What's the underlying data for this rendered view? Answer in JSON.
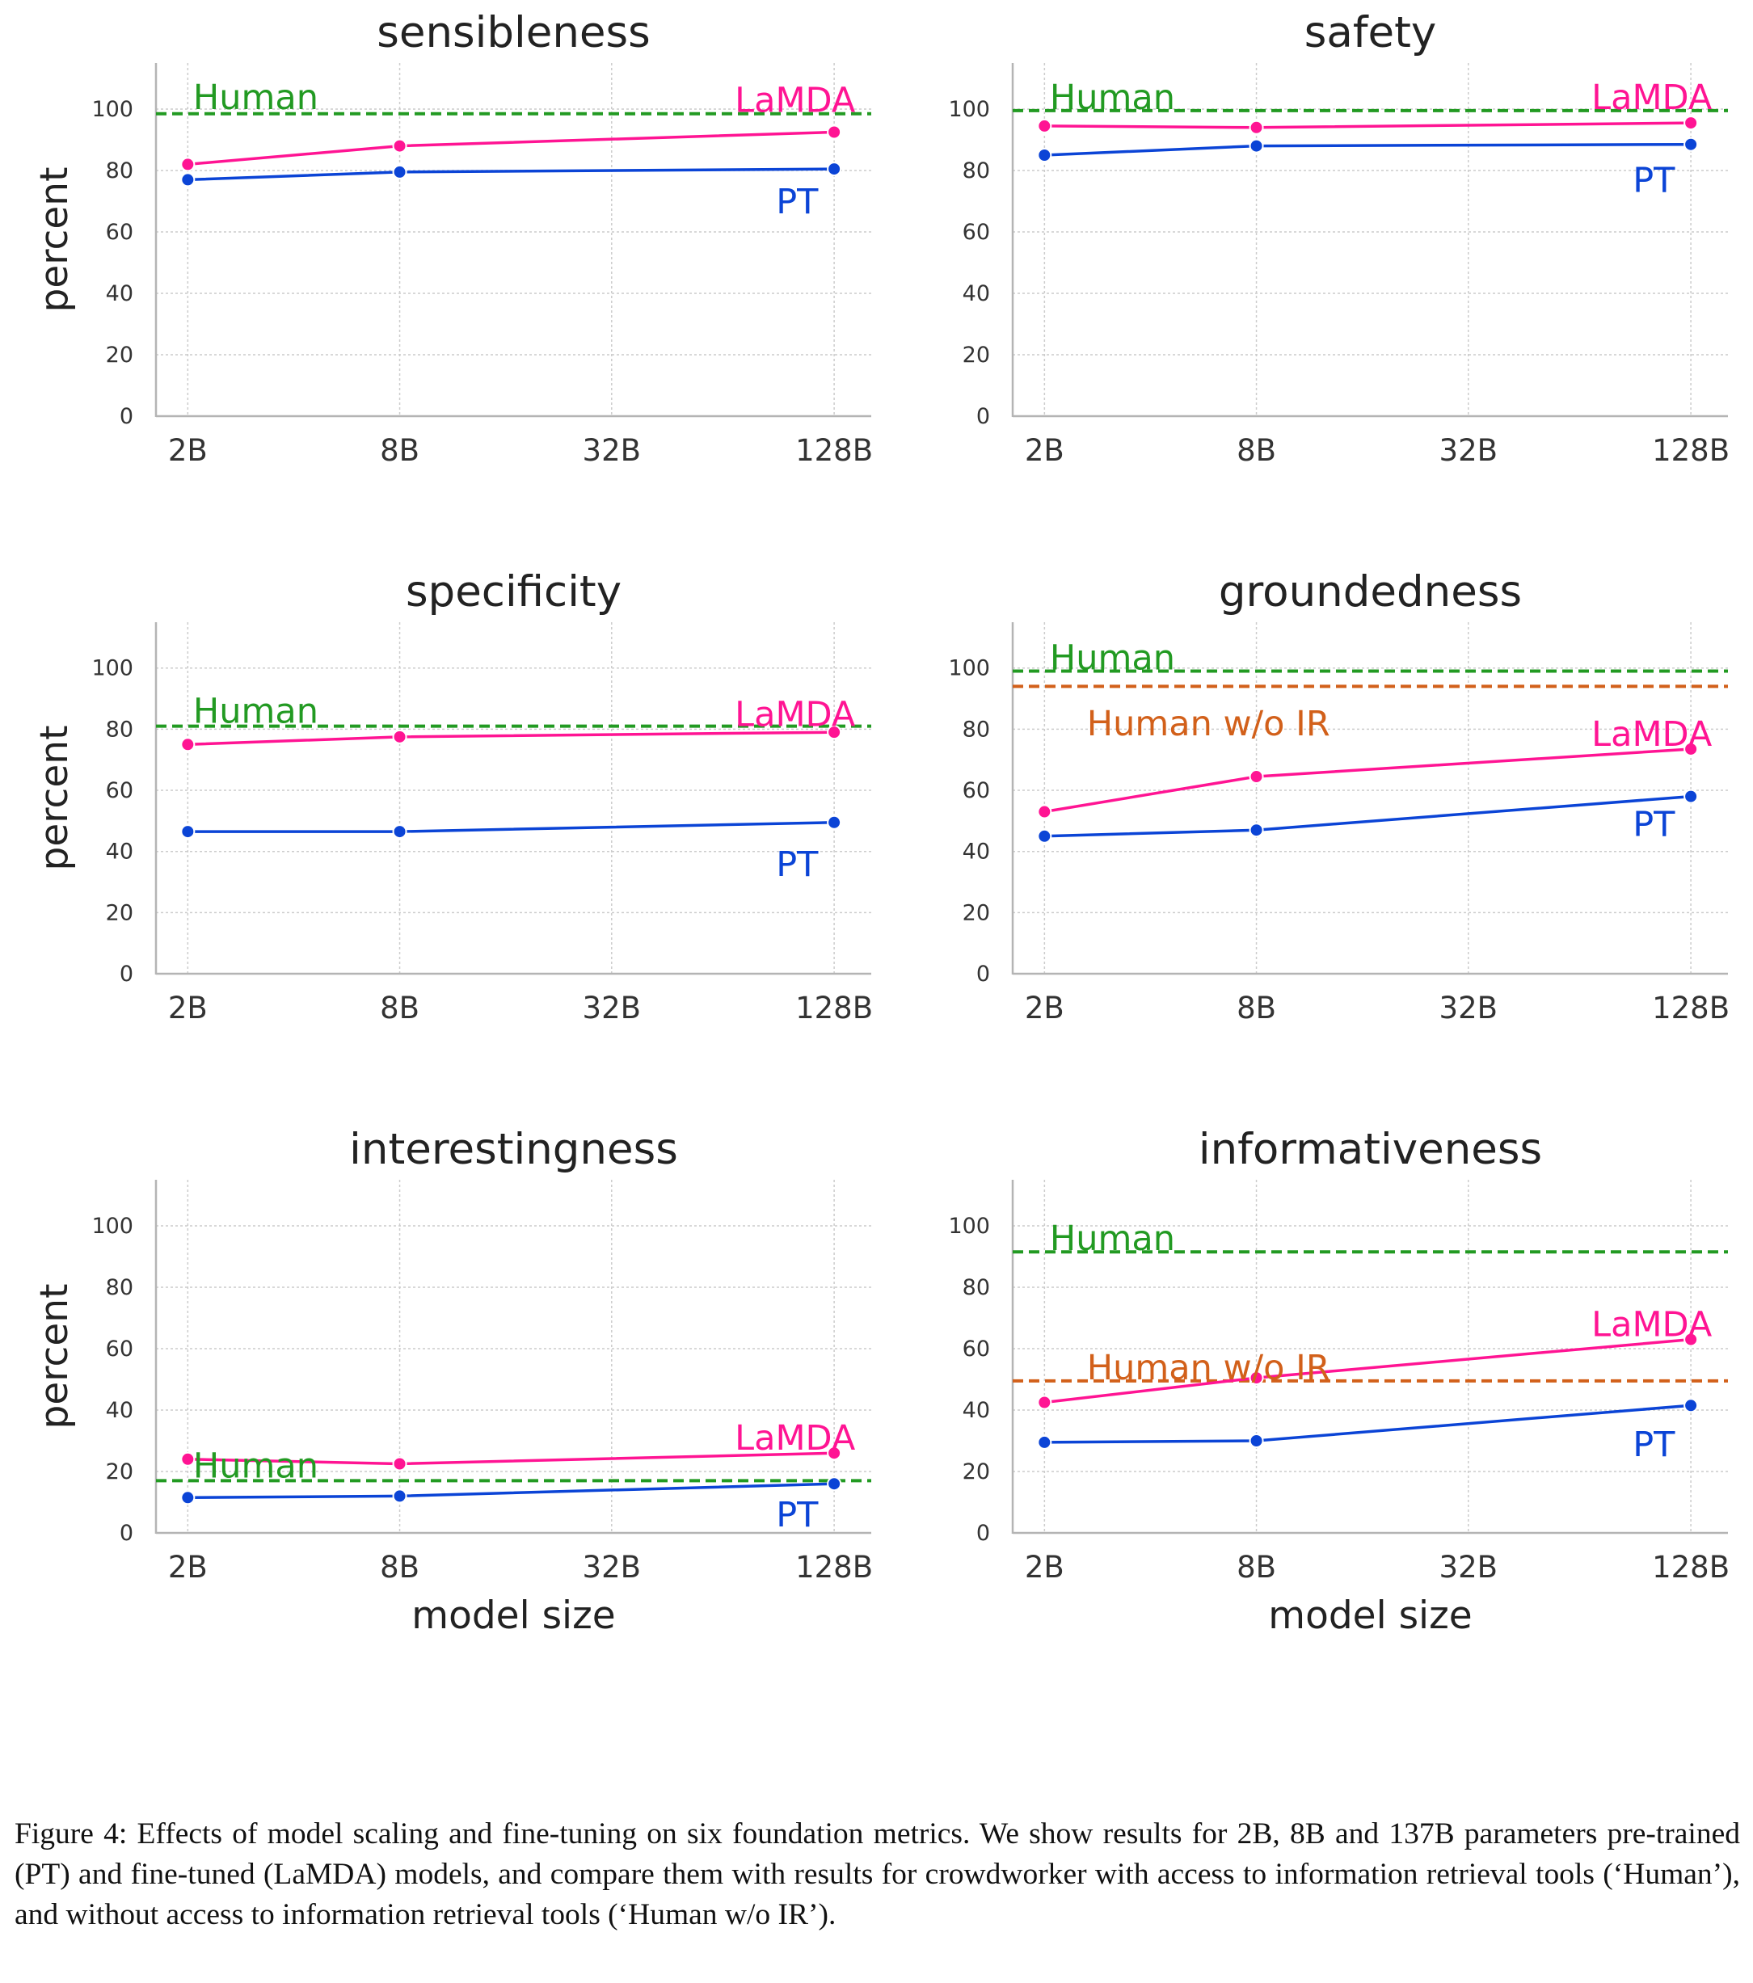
{
  "colors": {
    "lamda": "#ff1493",
    "pt": "#0b44d6",
    "human": "#229a22",
    "human_wo_ir": "#d2601a",
    "axis": "#b4b4b4",
    "grid": "#cccccc",
    "text": "#333333"
  },
  "chart_data": [
    {
      "type": "line",
      "title": "sensibleness",
      "xlabel": "",
      "ylabel": "percent",
      "categories": [
        "2B",
        "8B",
        "32B",
        "128B"
      ],
      "x_log2": [
        1,
        3,
        5,
        7.1
      ],
      "yticks": [
        "0",
        "20",
        "40",
        "60",
        "80",
        "100"
      ],
      "ylim": [
        0,
        115
      ],
      "grid": true,
      "series": [
        {
          "name": "LaMDA",
          "key": "lamda",
          "x": [
            1,
            3,
            7.1
          ],
          "values": [
            82,
            88,
            92.5
          ]
        },
        {
          "name": "PT",
          "key": "pt",
          "x": [
            1,
            3,
            7.1
          ],
          "values": [
            77,
            79.5,
            80.5
          ]
        }
      ],
      "hlines": [
        {
          "name": "Human",
          "key": "human",
          "value": 98.5
        }
      ],
      "labels": [
        {
          "text": "Human",
          "key": "human",
          "x": 1.05,
          "y": 104,
          "anchor": "start"
        },
        {
          "text": "LaMDA",
          "key": "lamda",
          "x": 7.3,
          "y": 103,
          "anchor": "end"
        },
        {
          "text": "PT",
          "key": "pt",
          "x": 6.95,
          "y": 70,
          "anchor": "end"
        }
      ]
    },
    {
      "type": "line",
      "title": "safety",
      "xlabel": "",
      "ylabel": "",
      "categories": [
        "2B",
        "8B",
        "32B",
        "128B"
      ],
      "x_log2": [
        1,
        3,
        5,
        7.1
      ],
      "yticks": [
        "0",
        "20",
        "40",
        "60",
        "80",
        "100"
      ],
      "ylim": [
        0,
        115
      ],
      "grid": true,
      "series": [
        {
          "name": "LaMDA",
          "key": "lamda",
          "x": [
            1,
            3,
            7.1
          ],
          "values": [
            94.5,
            94,
            95.5
          ]
        },
        {
          "name": "PT",
          "key": "pt",
          "x": [
            1,
            3,
            7.1
          ],
          "values": [
            85,
            88,
            88.5
          ]
        }
      ],
      "hlines": [
        {
          "name": "Human",
          "key": "human",
          "value": 99.5
        }
      ],
      "labels": [
        {
          "text": "Human",
          "key": "human",
          "x": 1.05,
          "y": 104,
          "anchor": "start"
        },
        {
          "text": "LaMDA",
          "key": "lamda",
          "x": 7.3,
          "y": 104,
          "anchor": "end"
        },
        {
          "text": "PT",
          "key": "pt",
          "x": 6.95,
          "y": 77,
          "anchor": "end"
        }
      ]
    },
    {
      "type": "line",
      "title": "specificity",
      "xlabel": "",
      "ylabel": "percent",
      "categories": [
        "2B",
        "8B",
        "32B",
        "128B"
      ],
      "x_log2": [
        1,
        3,
        5,
        7.1
      ],
      "yticks": [
        "0",
        "20",
        "40",
        "60",
        "80",
        "100"
      ],
      "ylim": [
        0,
        115
      ],
      "grid": true,
      "series": [
        {
          "name": "LaMDA",
          "key": "lamda",
          "x": [
            1,
            3,
            7.1
          ],
          "values": [
            75,
            77.5,
            79
          ]
        },
        {
          "name": "PT",
          "key": "pt",
          "x": [
            1,
            3,
            7.1
          ],
          "values": [
            46.5,
            46.5,
            49.5
          ]
        }
      ],
      "hlines": [
        {
          "name": "Human",
          "key": "human",
          "value": 81
        }
      ],
      "labels": [
        {
          "text": "Human",
          "key": "human",
          "x": 1.05,
          "y": 86,
          "anchor": "start"
        },
        {
          "text": "LaMDA",
          "key": "lamda",
          "x": 7.3,
          "y": 85,
          "anchor": "end"
        },
        {
          "text": "PT",
          "key": "pt",
          "x": 6.95,
          "y": 36,
          "anchor": "end"
        }
      ]
    },
    {
      "type": "line",
      "title": "groundedness",
      "xlabel": "",
      "ylabel": "",
      "categories": [
        "2B",
        "8B",
        "32B",
        "128B"
      ],
      "x_log2": [
        1,
        3,
        5,
        7.1
      ],
      "yticks": [
        "0",
        "20",
        "40",
        "60",
        "80",
        "100"
      ],
      "ylim": [
        0,
        115
      ],
      "grid": true,
      "series": [
        {
          "name": "LaMDA",
          "key": "lamda",
          "x": [
            1,
            3,
            7.1
          ],
          "values": [
            53,
            64.5,
            73.5
          ]
        },
        {
          "name": "PT",
          "key": "pt",
          "x": [
            1,
            3,
            7.1
          ],
          "values": [
            45,
            47,
            58
          ]
        }
      ],
      "hlines": [
        {
          "name": "Human",
          "key": "human",
          "value": 99
        },
        {
          "name": "Human w/o IR",
          "key": "human_wo_ir",
          "value": 94
        }
      ],
      "labels": [
        {
          "text": "Human",
          "key": "human",
          "x": 1.05,
          "y": 103.5,
          "anchor": "start"
        },
        {
          "text": "Human w/o IR",
          "key": "human_wo_ir",
          "x": 1.4,
          "y": 82,
          "anchor": "start"
        },
        {
          "text": "LaMDA",
          "key": "lamda",
          "x": 7.3,
          "y": 78.5,
          "anchor": "end"
        },
        {
          "text": "PT",
          "key": "pt",
          "x": 6.95,
          "y": 49,
          "anchor": "end"
        }
      ]
    },
    {
      "type": "line",
      "title": "interestingness",
      "xlabel": "model size",
      "ylabel": "percent",
      "categories": [
        "2B",
        "8B",
        "32B",
        "128B"
      ],
      "x_log2": [
        1,
        3,
        5,
        7.1
      ],
      "yticks": [
        "0",
        "20",
        "40",
        "60",
        "80",
        "100"
      ],
      "ylim": [
        0,
        115
      ],
      "grid": true,
      "series": [
        {
          "name": "LaMDA",
          "key": "lamda",
          "x": [
            1,
            3,
            7.1
          ],
          "values": [
            24,
            22.5,
            26
          ]
        },
        {
          "name": "PT",
          "key": "pt",
          "x": [
            1,
            3,
            7.1
          ],
          "values": [
            11.5,
            12,
            16
          ]
        }
      ],
      "hlines": [
        {
          "name": "Human",
          "key": "human",
          "value": 17
        }
      ],
      "labels": [
        {
          "text": "Human",
          "key": "human",
          "x": 1.05,
          "y": 22,
          "anchor": "start"
        },
        {
          "text": "LaMDA",
          "key": "lamda",
          "x": 7.3,
          "y": 31,
          "anchor": "end"
        },
        {
          "text": "PT",
          "key": "pt",
          "x": 6.95,
          "y": 6,
          "anchor": "end"
        }
      ]
    },
    {
      "type": "line",
      "title": "informativeness",
      "xlabel": "model size",
      "ylabel": "",
      "categories": [
        "2B",
        "8B",
        "32B",
        "128B"
      ],
      "x_log2": [
        1,
        3,
        5,
        7.1
      ],
      "yticks": [
        "0",
        "20",
        "40",
        "60",
        "80",
        "100"
      ],
      "ylim": [
        0,
        115
      ],
      "grid": true,
      "series": [
        {
          "name": "LaMDA",
          "key": "lamda",
          "x": [
            1,
            3,
            7.1
          ],
          "values": [
            42.5,
            50.5,
            63
          ]
        },
        {
          "name": "PT",
          "key": "pt",
          "x": [
            1,
            3,
            7.1
          ],
          "values": [
            29.5,
            30,
            41.5
          ]
        }
      ],
      "hlines": [
        {
          "name": "Human",
          "key": "human",
          "value": 91.5
        },
        {
          "name": "Human w/o IR",
          "key": "human_wo_ir",
          "value": 49.5
        }
      ],
      "labels": [
        {
          "text": "Human",
          "key": "human",
          "x": 1.05,
          "y": 96,
          "anchor": "start"
        },
        {
          "text": "Human w/o IR",
          "key": "human_wo_ir",
          "x": 1.4,
          "y": 54,
          "anchor": "start"
        },
        {
          "text": "LaMDA",
          "key": "lamda",
          "x": 7.3,
          "y": 68,
          "anchor": "end"
        },
        {
          "text": "PT",
          "key": "pt",
          "x": 6.95,
          "y": 29,
          "anchor": "end"
        }
      ]
    }
  ],
  "caption": "Figure 4: Effects of model scaling and fine-tuning on six foundation metrics. We show results for 2B, 8B and 137B parameters pre-trained (PT) and fine-tuned (LaMDA) models, and compare them with results for crowdworker with access to information retrieval tools (‘Human’), and without access to information retrieval tools (‘Human w/o IR’)."
}
